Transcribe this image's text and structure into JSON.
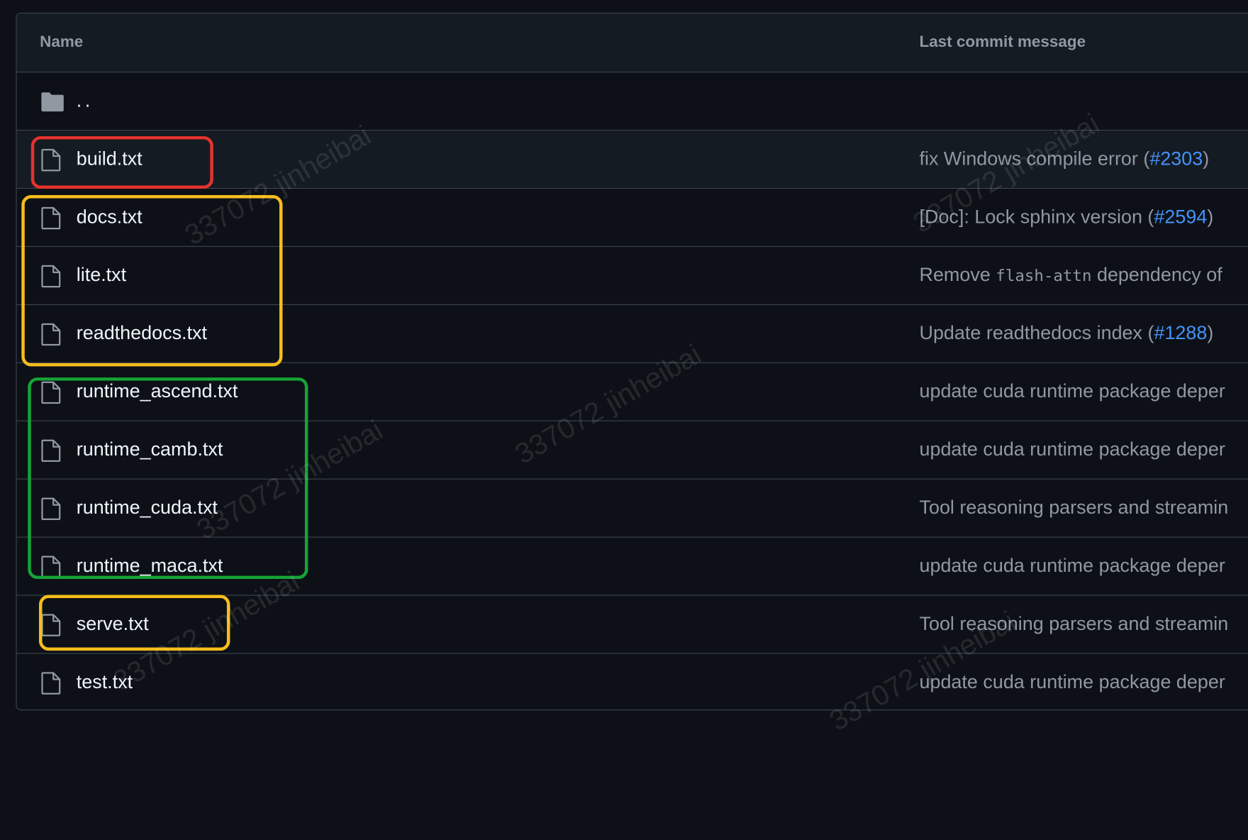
{
  "table": {
    "headers": [
      "Name",
      "Last commit message"
    ],
    "parent": "..",
    "rows": [
      {
        "name": "build.txt",
        "message": [
          "fix Windows compile error (",
          {
            "link": "#2303"
          },
          ")"
        ]
      },
      {
        "name": "docs.txt",
        "message": [
          "[Doc]: Lock sphinx version (",
          {
            "link": "#2594"
          },
          ")"
        ]
      },
      {
        "name": "lite.txt",
        "message": [
          "Remove ",
          {
            "code": "flash-attn"
          },
          " dependency of"
        ]
      },
      {
        "name": "readthedocs.txt",
        "message": [
          "Update readthedocs index (",
          {
            "link": "#1288"
          },
          ")"
        ]
      },
      {
        "name": "runtime_ascend.txt",
        "message": [
          "update cuda runtime package deper"
        ]
      },
      {
        "name": "runtime_camb.txt",
        "message": [
          "update cuda runtime package deper"
        ]
      },
      {
        "name": "runtime_cuda.txt",
        "message": [
          "Tool reasoning parsers and streamin"
        ]
      },
      {
        "name": "runtime_maca.txt",
        "message": [
          "update cuda runtime package deper"
        ]
      },
      {
        "name": "serve.txt",
        "message": [
          "Tool reasoning parsers and streamin"
        ]
      },
      {
        "name": "test.txt",
        "message": [
          "update cuda runtime package deper"
        ]
      }
    ]
  },
  "watermark": "337072 jinheibai"
}
